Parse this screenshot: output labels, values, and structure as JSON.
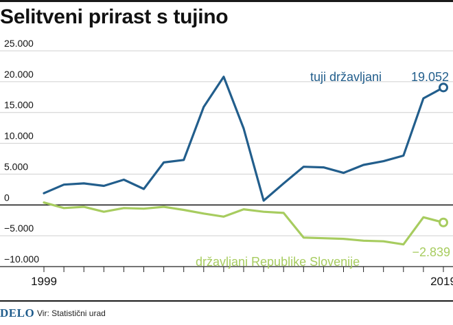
{
  "title": "Selitveni prirast s tujino",
  "footer": {
    "brand": "DELO",
    "source": "Vir: Statistični urad"
  },
  "colors": {
    "foreign": "#225e8c",
    "citizens": "#a7cc5f",
    "text": "#111111",
    "grid": "#cfcfcf"
  },
  "chart_data": {
    "type": "line",
    "title": "Selitveni prirast s tujino",
    "xlabel": "",
    "ylabel": "",
    "x": [
      1999,
      2000,
      2001,
      2002,
      2003,
      2004,
      2005,
      2006,
      2007,
      2008,
      2009,
      2010,
      2011,
      2012,
      2013,
      2014,
      2015,
      2016,
      2017,
      2018,
      2019
    ],
    "x_tick_labels": [
      "1999",
      "2019"
    ],
    "ylim": [
      -10000,
      25000
    ],
    "y_ticks": [
      25000,
      20000,
      15000,
      10000,
      5000,
      0,
      -5000,
      -10000
    ],
    "y_tick_labels": [
      "25.000",
      "20.000",
      "15.000",
      "10.000",
      "5.000",
      "0",
      "−5.000",
      "−10.000"
    ],
    "grid": true,
    "series": [
      {
        "name": "tuji državljani",
        "color": "#225e8c",
        "values": [
          1900,
          3300,
          3500,
          3100,
          4100,
          2600,
          6900,
          7300,
          15900,
          20800,
          12400,
          700,
          3500,
          6200,
          6100,
          5200,
          6500,
          7100,
          8000,
          17300,
          19052
        ]
      },
      {
        "name": "državljani Republike Slovenije",
        "color": "#a7cc5f",
        "values": [
          400,
          -500,
          -300,
          -1100,
          -500,
          -600,
          -300,
          -800,
          -1400,
          -1900,
          -700,
          -1100,
          -1300,
          -5300,
          -5400,
          -5500,
          -5800,
          -5900,
          -6400,
          -2000,
          -2839
        ]
      }
    ],
    "annotations": [
      {
        "series": 0,
        "text": "19.052"
      },
      {
        "series": 1,
        "text": "−2.839"
      }
    ]
  }
}
